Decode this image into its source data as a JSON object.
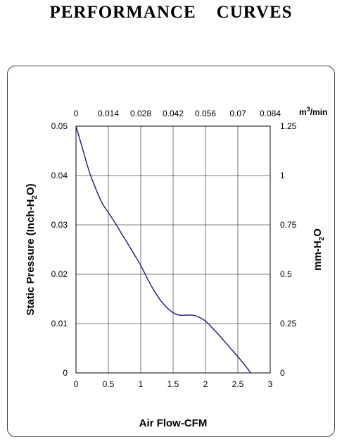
{
  "page": {
    "title": "PERFORMANCE    CURVES"
  },
  "chart_data": {
    "type": "line",
    "title": "",
    "xlabel": "Air Flow-CFM",
    "ylabel": "Static Pressure (Inch-H2O)",
    "ylabel_parts": [
      "Static Pressure (Inch-H",
      "2",
      "O)"
    ],
    "ylabel_right_parts": [
      "mm-H",
      "2",
      "O"
    ],
    "x2_unit_base": "m",
    "x2_unit_sup": "3",
    "x2_unit_rest": "/min",
    "xlim": [
      0,
      3
    ],
    "ylim": [
      0,
      0.05
    ],
    "x_ticks": [
      "0",
      "0.5",
      "1",
      "1.5",
      "2",
      "2.5",
      "3"
    ],
    "y_ticks": [
      "0",
      "0.01",
      "0.02",
      "0.03",
      "0.04",
      "0.05"
    ],
    "x2_ticks": [
      "0",
      "0.014",
      "0.028",
      "0.042",
      "0.056",
      "0.07",
      "0.084"
    ],
    "y2_ticks": [
      "0",
      "0.25",
      "0.5",
      "0.75",
      "1",
      "1.25"
    ],
    "grid": true,
    "series": [
      {
        "color": "#1a1a80",
        "x": [
          0,
          0.1,
          0.2,
          0.3,
          0.4,
          0.5,
          0.6,
          0.7,
          0.8,
          0.9,
          1.0,
          1.1,
          1.2,
          1.3,
          1.4,
          1.5,
          1.6,
          1.7,
          1.8,
          1.9,
          2.0,
          2.1,
          2.2,
          2.3,
          2.4,
          2.5,
          2.6,
          2.7
        ],
        "y": [
          0.05,
          0.0455,
          0.041,
          0.0375,
          0.0345,
          0.0325,
          0.0305,
          0.0283,
          0.0262,
          0.024,
          0.0218,
          0.0192,
          0.0168,
          0.0148,
          0.0133,
          0.0122,
          0.0117,
          0.0117,
          0.0117,
          0.0113,
          0.0105,
          0.0092,
          0.0078,
          0.0063,
          0.0048,
          0.0033,
          0.0017,
          0.0
        ]
      }
    ]
  }
}
